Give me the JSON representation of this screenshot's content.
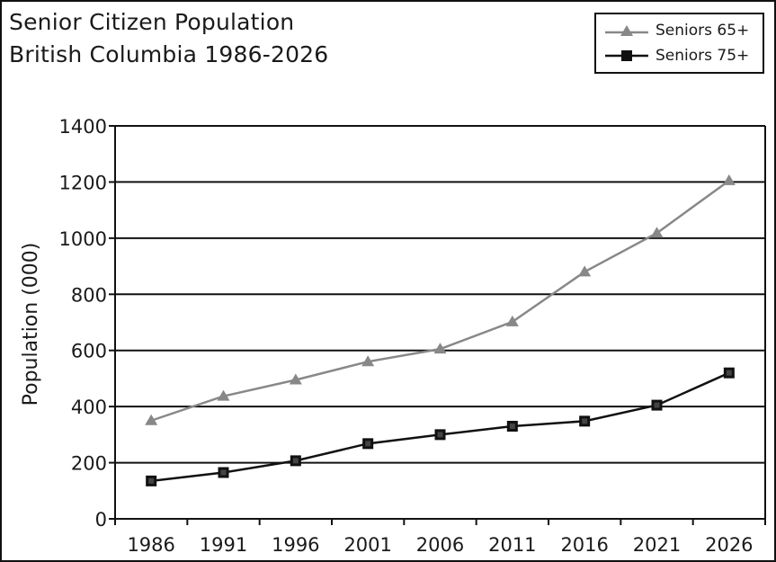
{
  "chart_data": {
    "type": "line",
    "title_lines": [
      "Senior Citizen Population",
      "British Columbia 1986-2026"
    ],
    "xlabel": "",
    "ylabel": "Population (000)",
    "categories": [
      "1986",
      "1991",
      "1996",
      "2001",
      "2006",
      "2011",
      "2016",
      "2021",
      "2026"
    ],
    "ylim": [
      0,
      1400
    ],
    "yticks": [
      0,
      200,
      400,
      600,
      800,
      1000,
      1200,
      1400
    ],
    "grid": "horizontal",
    "legend_position": "top-right",
    "series": [
      {
        "name": "Seniors 65+",
        "marker": "triangle",
        "color": "#888888",
        "values": [
          350,
          437,
          495,
          560,
          605,
          702,
          880,
          1018,
          1205
        ]
      },
      {
        "name": "Seniors 75+",
        "marker": "square",
        "color": "#111111",
        "values": [
          135,
          165,
          207,
          268,
          300,
          330,
          348,
          405,
          520
        ]
      }
    ]
  }
}
